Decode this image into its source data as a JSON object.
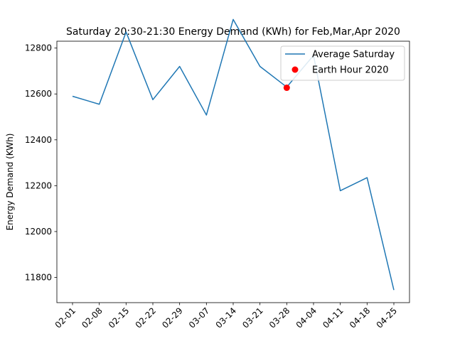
{
  "chart_data": {
    "type": "line",
    "title": "Saturday 20:30-21:30 Energy Demand (KWh) for Feb,Mar,Apr 2020",
    "xlabel": "",
    "ylabel": "Energy Demand (KWh)",
    "categories": [
      "02-01",
      "02-08",
      "02-15",
      "02-22",
      "02-29",
      "03-07",
      "03-14",
      "03-21",
      "03-28",
      "04-04",
      "04-11",
      "04-18",
      "04-25"
    ],
    "ylim": [
      11690,
      12830
    ],
    "yticks": [
      11800,
      12000,
      12200,
      12400,
      12600,
      12800
    ],
    "grid": false,
    "legend_position": "top-right",
    "series": [
      {
        "name": "Average Saturday",
        "type": "line",
        "color": "#1f77b4",
        "values": [
          12590,
          12555,
          12870,
          12575,
          12720,
          12508,
          12925,
          12720,
          12630,
          12768,
          12178,
          12235,
          11745
        ]
      },
      {
        "name": "Earth Hour 2020",
        "type": "scatter",
        "color": "#ff0000",
        "points": [
          {
            "x": "03-28",
            "y": 12627
          }
        ]
      }
    ]
  }
}
